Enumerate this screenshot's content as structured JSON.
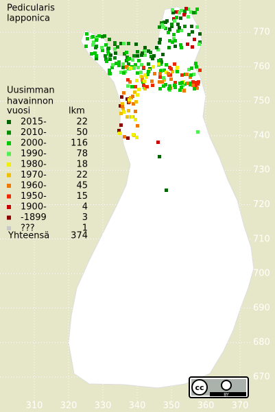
{
  "title": [
    "Pedicularis",
    "lapponica"
  ],
  "legend": {
    "heading": [
      "Uusimman",
      "havainnon",
      "vuosi"
    ],
    "count_heading": "lkm",
    "entries": [
      {
        "label": "2015-",
        "count": 22,
        "color": "#006400"
      },
      {
        "label": "2010-",
        "count": 50,
        "color": "#008c00"
      },
      {
        "label": "2000-",
        "count": 116,
        "color": "#00c800"
      },
      {
        "label": "1990-",
        "count": 78,
        "color": "#50f050"
      },
      {
        "label": "1980-",
        "count": 18,
        "color": "#f0f000"
      },
      {
        "label": "1970-",
        "count": 22,
        "color": "#f0c000"
      },
      {
        "label": "1960-",
        "count": 45,
        "color": "#f07800"
      },
      {
        "label": "1950-",
        "count": 15,
        "color": "#f02800"
      },
      {
        "label": "1900-",
        "count": 4,
        "color": "#c80000"
      },
      {
        "label": "-1899",
        "count": 3,
        "color": "#8c0000"
      },
      {
        "label": "???",
        "count": 1,
        "color": "#c8c8c8"
      }
    ],
    "total_label": "Yhteensä",
    "total": 374
  },
  "northing_labels": [
    770,
    760,
    750,
    740,
    730,
    720,
    710,
    700,
    690,
    680,
    670
  ],
  "easting_labels": [
    310,
    320,
    330,
    340,
    350,
    360,
    370
  ],
  "license": {
    "cc": "cc",
    "by": "BY"
  }
}
